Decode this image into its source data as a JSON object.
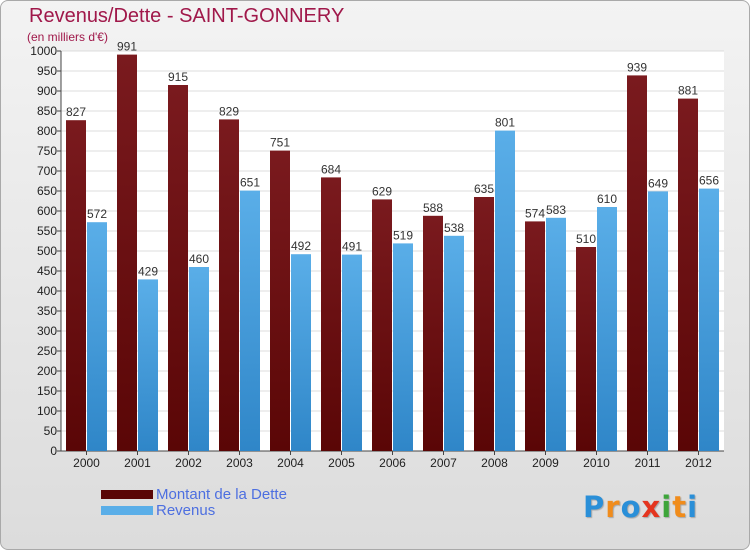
{
  "title": "Revenus/Dette - SAINT-GONNERY",
  "subtitle": "(en milliers d'€)",
  "logo": "Proxiti",
  "colors": {
    "debt": "#7a1a1e",
    "debt_dark": "#5a0606",
    "revenue": "#5aaee8",
    "revenue_dark": "#2f86c8",
    "title": "#a0184a",
    "legend_text": "#4d6fe0"
  },
  "chart_data": {
    "type": "bar",
    "title": "Revenus/Dette - SAINT-GONNERY",
    "subtitle": "(en milliers d'€)",
    "categories": [
      "2000",
      "2001",
      "2002",
      "2003",
      "2004",
      "2005",
      "2006",
      "2007",
      "2008",
      "2009",
      "2010",
      "2011",
      "2012"
    ],
    "series": [
      {
        "name": "Montant de la Dette",
        "values": [
          827,
          991,
          915,
          829,
          751,
          684,
          629,
          588,
          635,
          574,
          510,
          939,
          881
        ]
      },
      {
        "name": "Revenus",
        "values": [
          572,
          429,
          460,
          651,
          492,
          491,
          519,
          538,
          801,
          583,
          610,
          649,
          656
        ]
      }
    ],
    "ylim": [
      0,
      1000
    ],
    "ytick_step": 50,
    "yticks": [
      "0",
      "50",
      "100",
      "150",
      "200",
      "250",
      "300",
      "350",
      "400",
      "450",
      "500",
      "550",
      "600",
      "650",
      "700",
      "750",
      "800",
      "850",
      "900",
      "950",
      "1000"
    ],
    "grid": true,
    "legend_position": "bottom-left",
    "xlabel": "",
    "ylabel": ""
  }
}
